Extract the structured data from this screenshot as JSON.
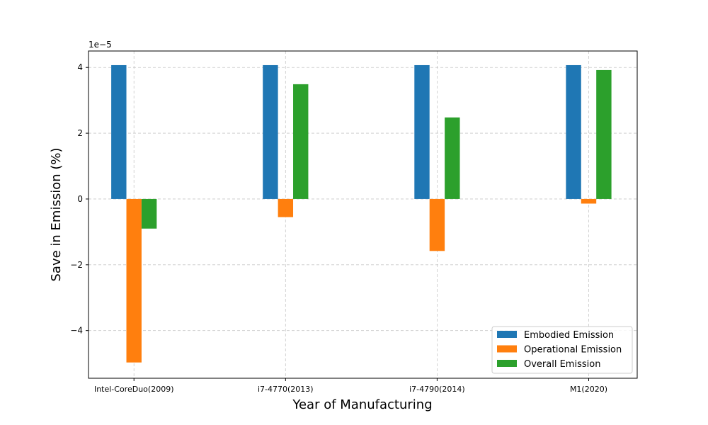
{
  "chart_data": {
    "type": "bar",
    "categories": [
      "Intel-CoreDuo(2009)",
      "i7-4770(2013)",
      "i7-4790(2014)",
      "M1(2020)"
    ],
    "series": [
      {
        "name": "Embodied Emission",
        "color": "#1f77b4",
        "values": [
          4.07,
          4.07,
          4.07,
          4.07
        ]
      },
      {
        "name": "Operational Emission",
        "color": "#ff7f0e",
        "values": [
          -4.97,
          -0.55,
          -1.58,
          -0.14
        ]
      },
      {
        "name": "Overall Emission",
        "color": "#2ca02c",
        "values": [
          -0.9,
          3.49,
          2.48,
          3.92
        ]
      }
    ],
    "xlabel": "Year of Manufacturing",
    "ylabel": "Save in Emission (%)",
    "scale_label": "1e−5",
    "ylim": [
      -5.45,
      4.5
    ],
    "yticks": [
      4,
      2,
      0,
      -2,
      -4
    ],
    "ytick_labels": [
      "4",
      "2",
      "0",
      "−2",
      "−4"
    ],
    "grid": true,
    "legend_position": "lower right"
  }
}
